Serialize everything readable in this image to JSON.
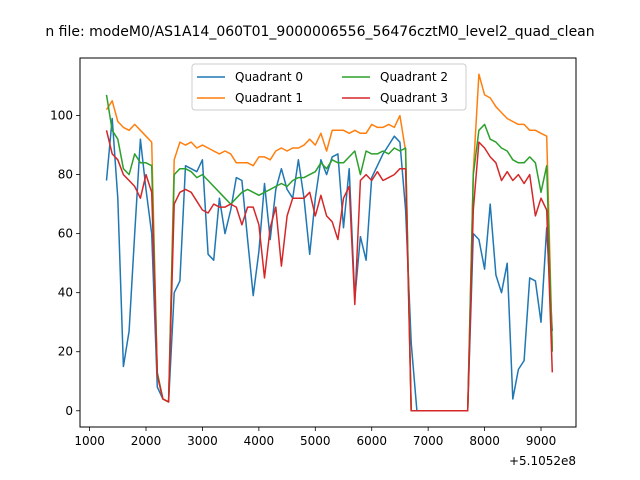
{
  "chart_data": {
    "type": "line",
    "title": "n file: modeM0/AS1A14_060T01_9000006556_56476cztM0_level2_quad_clean",
    "xlabel": "",
    "ylabel": "",
    "x_offset_label": "+5.1052e8",
    "xlim": [
      830,
      9620
    ],
    "ylim": [
      -5.5,
      119.5
    ],
    "x_ticks": [
      1000,
      2000,
      3000,
      4000,
      5000,
      6000,
      7000,
      8000,
      9000
    ],
    "y_ticks": [
      0,
      20,
      40,
      60,
      80,
      100
    ],
    "legend_position": "upper center",
    "x": [
      1300,
      1400,
      1500,
      1600,
      1700,
      1800,
      1900,
      2000,
      2100,
      2200,
      2300,
      2400,
      2500,
      2600,
      2700,
      2800,
      2900,
      3000,
      3100,
      3200,
      3300,
      3400,
      3500,
      3600,
      3700,
      3800,
      3900,
      4000,
      4100,
      4200,
      4300,
      4400,
      4500,
      4600,
      4700,
      4800,
      4900,
      5000,
      5100,
      5200,
      5300,
      5400,
      5500,
      5600,
      5700,
      5800,
      5900,
      6000,
      6100,
      6200,
      6300,
      6400,
      6500,
      6600,
      6700,
      6800,
      6900,
      7000,
      7100,
      7200,
      7300,
      7400,
      7500,
      7600,
      7700,
      7800,
      7900,
      8000,
      8100,
      8200,
      8300,
      8400,
      8500,
      8600,
      8700,
      8800,
      8900,
      9000,
      9100,
      9200
    ],
    "series": [
      {
        "name": "Quadrant 0",
        "color": "#1f77b4",
        "values": [
          78,
          99,
          72,
          15,
          27,
          60,
          92,
          75,
          60,
          8,
          4,
          3,
          40,
          44,
          83,
          82,
          81,
          85,
          53,
          51,
          72,
          60,
          68,
          79,
          78,
          58,
          39,
          54,
          77,
          58,
          75,
          82,
          75,
          72,
          85,
          72,
          53,
          72,
          85,
          80,
          86,
          87,
          62,
          82,
          38,
          59,
          51,
          79,
          83,
          87,
          90,
          93,
          91,
          68,
          23,
          0,
          0,
          0,
          0,
          0,
          0,
          0,
          0,
          0,
          0,
          60,
          58,
          48,
          70,
          46,
          40,
          50,
          4,
          14,
          17,
          45,
          44,
          30,
          62,
          27
        ]
      },
      {
        "name": "Quadrant 1",
        "color": "#ff7f0e",
        "values": [
          102,
          105,
          98,
          96,
          95,
          97,
          95,
          93,
          91,
          12,
          4,
          3,
          85,
          91,
          90,
          91,
          89,
          90,
          89,
          88,
          87,
          88,
          87,
          84,
          84,
          84,
          83,
          86,
          86,
          85,
          88,
          89,
          88,
          89,
          89,
          90,
          92,
          90,
          94,
          88,
          95,
          95,
          95,
          94,
          95,
          94,
          94,
          97,
          96,
          96,
          97,
          96,
          100,
          88,
          0,
          0,
          0,
          0,
          0,
          0,
          0,
          0,
          0,
          0,
          0,
          81,
          114,
          107,
          106,
          103,
          101,
          99,
          98,
          97,
          97,
          95,
          95,
          94,
          93,
          21
        ]
      },
      {
        "name": "Quadrant 2",
        "color": "#2ca02c",
        "values": [
          107,
          95,
          92,
          82,
          80,
          87,
          84,
          84,
          83,
          13,
          4,
          3,
          80,
          82,
          82,
          81,
          79,
          80,
          78,
          76,
          74,
          72,
          70,
          72,
          74,
          75,
          74,
          73,
          74,
          75,
          76,
          77,
          76,
          78,
          79,
          79,
          80,
          81,
          84,
          82,
          85,
          84,
          84,
          86,
          88,
          80,
          88,
          87,
          87,
          88,
          87,
          89,
          88,
          89,
          0,
          0,
          0,
          0,
          0,
          0,
          0,
          0,
          0,
          0,
          0,
          80,
          95,
          97,
          92,
          91,
          89,
          88,
          85,
          84,
          84,
          86,
          84,
          74,
          83,
          20
        ]
      },
      {
        "name": "Quadrant 3",
        "color": "#d62728",
        "values": [
          95,
          87,
          85,
          80,
          78,
          76,
          72,
          80,
          74,
          12,
          4,
          3,
          70,
          74,
          75,
          74,
          71,
          68,
          67,
          70,
          69,
          69,
          70,
          69,
          63,
          69,
          69,
          63,
          45,
          62,
          69,
          49,
          66,
          72,
          72,
          72,
          74,
          66,
          73,
          66,
          64,
          58,
          72,
          76,
          36,
          78,
          80,
          78,
          81,
          78,
          79,
          80,
          82,
          82,
          0,
          0,
          0,
          0,
          0,
          0,
          0,
          0,
          0,
          0,
          0,
          68,
          91,
          89,
          86,
          84,
          78,
          81,
          78,
          80,
          77,
          80,
          66,
          72,
          68,
          13
        ]
      }
    ]
  }
}
